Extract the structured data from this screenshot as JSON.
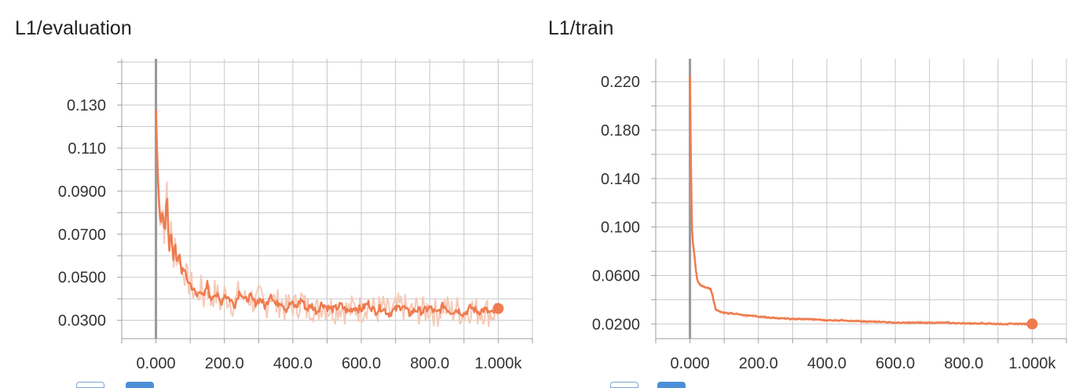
{
  "colors": {
    "line": "#ef7b4f",
    "raw": "#f6c9b6",
    "grid": "#c8c8c8",
    "axis": "#9e9e9e",
    "zero": "#999999"
  },
  "chart_data": [
    {
      "type": "line",
      "title": "L1/evaluation",
      "xlabel": "",
      "ylabel": "",
      "xlim": [
        -100,
        1100
      ],
      "ylim": [
        0.0215,
        0.1515
      ],
      "x_ticks": [
        0,
        200,
        400,
        600,
        800,
        1000
      ],
      "x_tick_labels": [
        "0.000",
        "200.0",
        "400.0",
        "600.0",
        "800.0",
        "1.000k"
      ],
      "y_ticks": [
        0.03,
        0.05,
        0.07,
        0.09,
        0.11,
        0.13
      ],
      "y_tick_labels": [
        "0.0300",
        "0.0500",
        "0.0700",
        "0.0900",
        "0.110",
        "0.130"
      ],
      "grid": true,
      "series": [
        {
          "x": [
            0,
            4,
            8,
            14,
            20,
            26,
            32,
            38,
            44,
            50,
            56,
            62,
            68,
            74,
            80,
            90,
            100,
            110,
            120,
            130,
            140,
            150,
            160,
            170,
            180,
            190,
            200,
            215,
            230,
            245,
            260,
            275,
            290,
            305,
            320,
            335,
            350,
            365,
            380,
            395,
            410,
            425,
            440,
            455,
            470,
            485,
            500,
            520,
            540,
            560,
            580,
            600,
            620,
            640,
            660,
            680,
            700,
            720,
            740,
            760,
            780,
            800,
            820,
            840,
            860,
            880,
            900,
            920,
            940,
            960,
            980,
            1000
          ],
          "y": [
            0.128,
            0.104,
            0.088,
            0.073,
            0.081,
            0.067,
            0.093,
            0.062,
            0.072,
            0.057,
            0.068,
            0.055,
            0.061,
            0.052,
            0.055,
            0.049,
            0.047,
            0.044,
            0.041,
            0.045,
            0.04,
            0.047,
            0.039,
            0.043,
            0.041,
            0.038,
            0.042,
            0.04,
            0.037,
            0.044,
            0.039,
            0.041,
            0.038,
            0.04,
            0.036,
            0.043,
            0.037,
            0.039,
            0.035,
            0.038,
            0.036,
            0.04,
            0.035,
            0.037,
            0.034,
            0.038,
            0.036,
            0.035,
            0.037,
            0.034,
            0.036,
            0.035,
            0.038,
            0.034,
            0.036,
            0.033,
            0.035,
            0.037,
            0.033,
            0.035,
            0.034,
            0.036,
            0.033,
            0.037,
            0.034,
            0.035,
            0.033,
            0.036,
            0.034,
            0.035,
            0.033,
            0.0355
          ]
        }
      ]
    },
    {
      "type": "line",
      "title": "L1/train",
      "xlabel": "",
      "ylabel": "",
      "xlim": [
        -100,
        1100
      ],
      "ylim": [
        0.0079,
        0.2389
      ],
      "x_ticks": [
        0,
        200,
        400,
        600,
        800,
        1000
      ],
      "x_tick_labels": [
        "0.000",
        "200.0",
        "400.0",
        "600.0",
        "800.0",
        "1.000k"
      ],
      "y_ticks": [
        0.02,
        0.06,
        0.1,
        0.14,
        0.18,
        0.22
      ],
      "y_tick_labels": [
        "0.0200",
        "0.0600",
        "0.100",
        "0.140",
        "0.180",
        "0.220"
      ],
      "grid": true,
      "series": [
        {
          "x": [
            0,
            2,
            4,
            6,
            8,
            12,
            16,
            20,
            25,
            30,
            40,
            50,
            60,
            65,
            70,
            75,
            80,
            90,
            100,
            120,
            140,
            160,
            180,
            200,
            250,
            300,
            350,
            400,
            450,
            500,
            550,
            600,
            650,
            700,
            750,
            800,
            850,
            900,
            950,
            1000
          ],
          "y": [
            0.225,
            0.18,
            0.12,
            0.098,
            0.088,
            0.08,
            0.068,
            0.058,
            0.054,
            0.052,
            0.051,
            0.05,
            0.049,
            0.045,
            0.038,
            0.032,
            0.031,
            0.03,
            0.029,
            0.029,
            0.028,
            0.027,
            0.027,
            0.026,
            0.025,
            0.024,
            0.024,
            0.023,
            0.023,
            0.022,
            0.022,
            0.021,
            0.021,
            0.021,
            0.021,
            0.0205,
            0.0205,
            0.02,
            0.02,
            0.02
          ]
        }
      ]
    }
  ]
}
